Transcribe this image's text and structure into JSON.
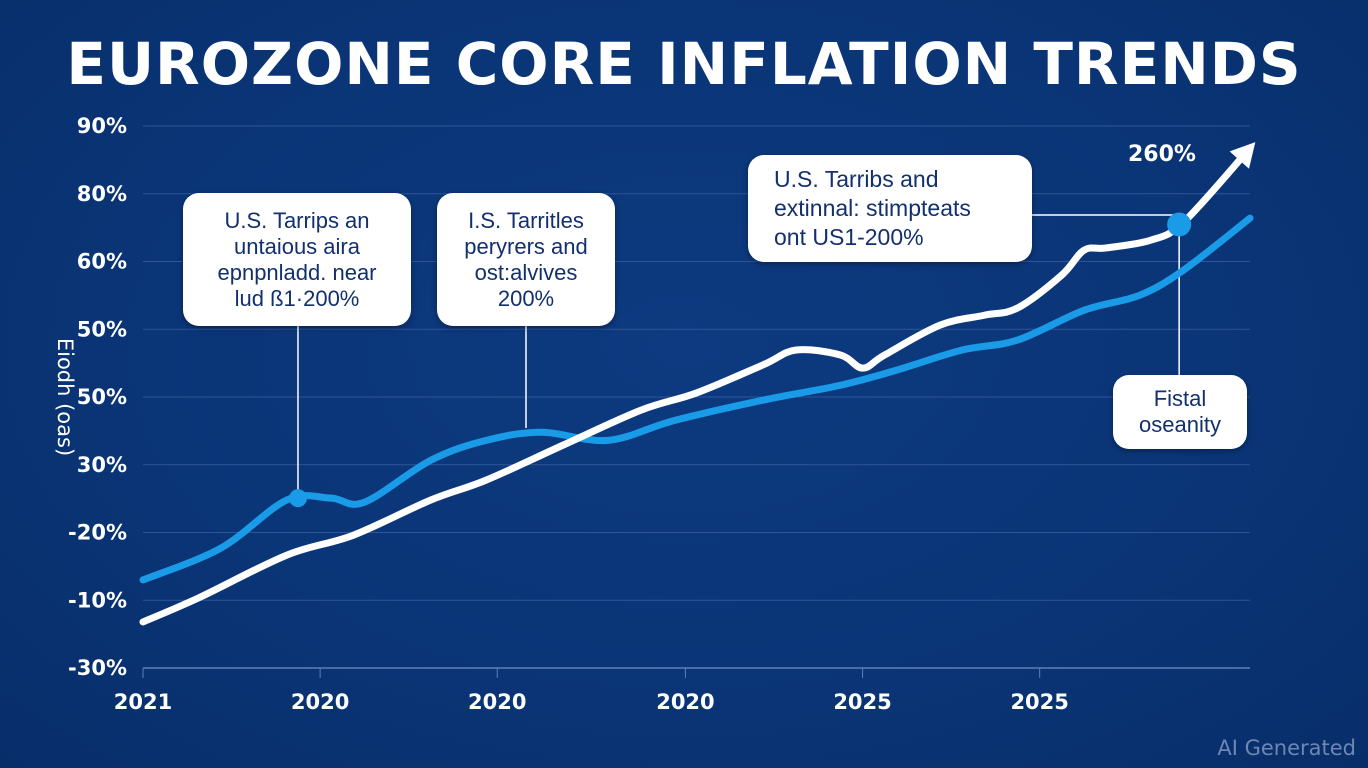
{
  "chart_data": {
    "type": "line",
    "title": "EUROZONE CORE INFLATION TRENDS",
    "xlabel": "",
    "ylabel": "Eiodh (oas)",
    "ylim": [
      -30,
      90
    ],
    "grid": true,
    "y_ticks": [
      {
        "label": "90%",
        "value": 90
      },
      {
        "label": "80%",
        "value": 75
      },
      {
        "label": "60%",
        "value": 60
      },
      {
        "label": "50%",
        "value": 45
      },
      {
        "label": "50%",
        "value": 30
      },
      {
        "label": "30%",
        "value": 15
      },
      {
        "label": "-20%",
        "value": 0
      },
      {
        "label": "-10%",
        "value": -15
      },
      {
        "label": "-30%",
        "value": -30
      }
    ],
    "x_ticks": [
      {
        "label": "2021",
        "pos": 0.0
      },
      {
        "label": "2020",
        "pos": 0.16
      },
      {
        "label": "2020",
        "pos": 0.32
      },
      {
        "label": "2020",
        "pos": 0.49
      },
      {
        "label": "2025",
        "pos": 0.65
      },
      {
        "label": "2025",
        "pos": 0.81
      }
    ],
    "xlim": [
      0,
      1
    ],
    "series": [
      {
        "name": "white-series",
        "color": "#ffffff",
        "x": [
          0.0,
          0.05,
          0.13,
          0.19,
          0.26,
          0.31,
          0.38,
          0.45,
          0.5,
          0.56,
          0.59,
          0.63,
          0.65,
          0.67,
          0.72,
          0.76,
          0.79,
          0.83,
          0.85,
          0.87,
          0.91,
          0.94,
          1.0
        ],
        "values": [
          -19.8,
          -14.5,
          -5.0,
          -0.6,
          7.2,
          11.6,
          19.4,
          27.1,
          30.9,
          37.1,
          40.4,
          39.3,
          36.4,
          39.3,
          45.9,
          48.1,
          49.7,
          57.0,
          62.5,
          63.0,
          64.7,
          68.7,
          85.1
        ],
        "end_marker": "arrow",
        "end_label": "260%"
      },
      {
        "name": "blue-series",
        "color": "#1a9be8",
        "x": [
          0.0,
          0.07,
          0.13,
          0.17,
          0.2,
          0.26,
          0.31,
          0.36,
          0.42,
          0.48,
          0.56,
          0.63,
          0.68,
          0.74,
          0.79,
          0.85,
          0.9,
          0.94,
          1.0
        ],
        "values": [
          -10.5,
          -3.5,
          7.2,
          7.6,
          6.7,
          16.0,
          20.4,
          22.2,
          20.4,
          24.8,
          29.3,
          32.6,
          35.9,
          40.4,
          42.6,
          49.2,
          52.5,
          58.1,
          69.6
        ]
      }
    ],
    "markers": [
      {
        "series": "blue-series",
        "x": 0.14,
        "value": 7.6,
        "color": "#1a9be8"
      },
      {
        "series": "white-series",
        "x": 0.936,
        "value": 68.2,
        "color": "#1a9be8"
      }
    ],
    "annotations": [
      {
        "text": "U.S. Tarrips an\nuntaious aira\nepnpnladd. near\nlud ß1·200%",
        "target_x": 0.14,
        "target_value": 7.6
      },
      {
        "text": "I.S. Tarritles\nperyrers and\nost:alvives\n200%",
        "target_x": 0.345,
        "target_value": 21.5
      },
      {
        "text": "U.S. Tarribs and\nextinnal: stimpteats\nont US1-200%",
        "target_x": 0.936,
        "target_value": 68.2
      },
      {
        "text": "Fistal\noseanity",
        "target_x": 0.936,
        "target_value": 68.2
      }
    ]
  },
  "watermark": "AI Generated",
  "colors": {
    "background": "#0a3577",
    "white_line": "#ffffff",
    "blue_line": "#1a9be8",
    "grid": "#2f5597",
    "callout_text": "#13306e"
  }
}
